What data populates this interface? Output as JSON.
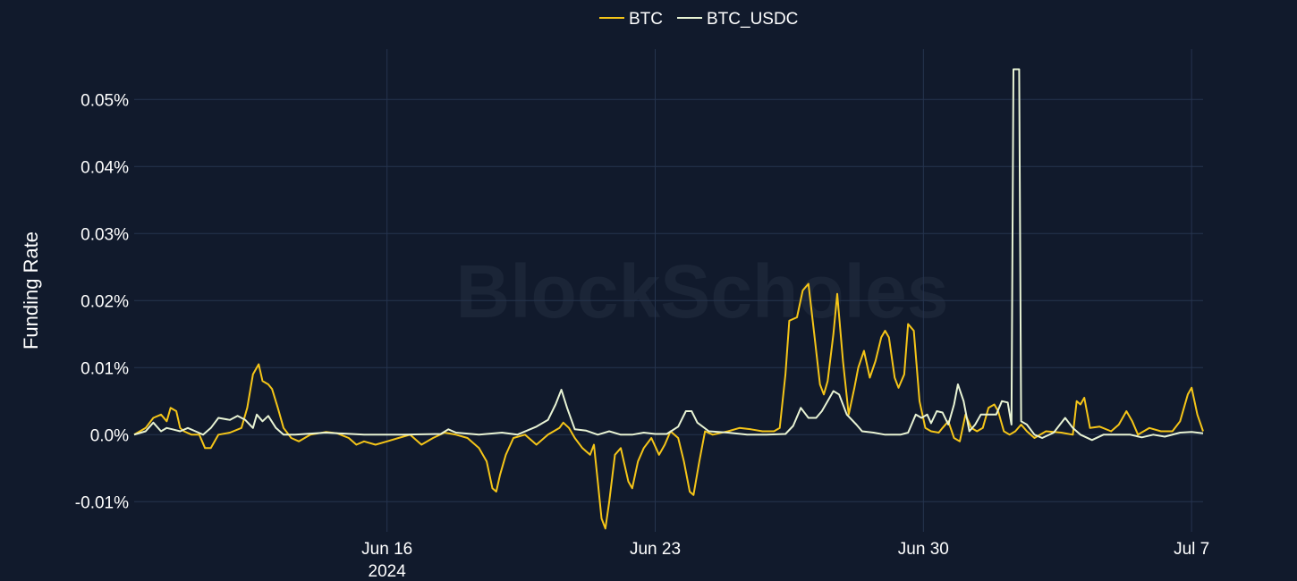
{
  "chart_data": {
    "type": "line",
    "title": "",
    "watermark": "BlockScholes",
    "ylabel": "Funding Rate",
    "xlabel": "",
    "ylim": [
      -0.0145,
      0.0575
    ],
    "xlim": [
      0,
      27.9
    ],
    "grid": true,
    "legend_position": "top-center",
    "y_ticks": [
      {
        "value": -0.01,
        "label": "-0.01%"
      },
      {
        "value": 0.0,
        "label": "0.0%"
      },
      {
        "value": 0.01,
        "label": "0.01%"
      },
      {
        "value": 0.02,
        "label": "0.02%"
      },
      {
        "value": 0.03,
        "label": "0.03%"
      },
      {
        "value": 0.04,
        "label": "0.04%"
      },
      {
        "value": 0.05,
        "label": "0.05%"
      }
    ],
    "x_ticks": [
      {
        "value": 6.6,
        "label": "Jun 16",
        "sublabel": "2024"
      },
      {
        "value": 13.6,
        "label": "Jun 23",
        "sublabel": ""
      },
      {
        "value": 20.6,
        "label": "Jun 30",
        "sublabel": ""
      },
      {
        "value": 27.6,
        "label": "Jul 7",
        "sublabel": ""
      }
    ],
    "series": [
      {
        "name": "BTC",
        "color": "#f5c518",
        "points": [
          [
            0,
            0
          ],
          [
            0.3,
            0.001
          ],
          [
            0.5,
            0.0025
          ],
          [
            0.7,
            0.003
          ],
          [
            0.85,
            0.002
          ],
          [
            0.95,
            0.004
          ],
          [
            1.1,
            0.0035
          ],
          [
            1.2,
            0.001
          ],
          [
            1.3,
            0.0005
          ],
          [
            1.5,
            0
          ],
          [
            1.7,
            0
          ],
          [
            1.85,
            -0.002
          ],
          [
            2.0,
            -0.002
          ],
          [
            2.2,
            0
          ],
          [
            2.5,
            0.0003
          ],
          [
            2.8,
            0.001
          ],
          [
            2.95,
            0.004
          ],
          [
            3.1,
            0.009
          ],
          [
            3.25,
            0.0105
          ],
          [
            3.35,
            0.008
          ],
          [
            3.5,
            0.0075
          ],
          [
            3.6,
            0.0068
          ],
          [
            3.75,
            0.004
          ],
          [
            3.9,
            0.001
          ],
          [
            4.1,
            -0.0005
          ],
          [
            4.3,
            -0.001
          ],
          [
            4.6,
            0
          ],
          [
            5.0,
            0.0004
          ],
          [
            5.3,
            0.0002
          ],
          [
            5.6,
            -0.0005
          ],
          [
            5.8,
            -0.0015
          ],
          [
            6.0,
            -0.001
          ],
          [
            6.3,
            -0.0015
          ],
          [
            6.6,
            -0.001
          ],
          [
            6.9,
            -0.0005
          ],
          [
            7.2,
            0
          ],
          [
            7.5,
            -0.0015
          ],
          [
            7.8,
            -0.0005
          ],
          [
            8.1,
            0.0003
          ],
          [
            8.4,
            0
          ],
          [
            8.7,
            -0.0005
          ],
          [
            9.0,
            -0.002
          ],
          [
            9.2,
            -0.004
          ],
          [
            9.35,
            -0.008
          ],
          [
            9.45,
            -0.0085
          ],
          [
            9.55,
            -0.006
          ],
          [
            9.7,
            -0.003
          ],
          [
            9.9,
            -0.0005
          ],
          [
            10.2,
            0
          ],
          [
            10.5,
            -0.0015
          ],
          [
            10.8,
            0
          ],
          [
            11.1,
            0.001
          ],
          [
            11.2,
            0.0018
          ],
          [
            11.35,
            0.001
          ],
          [
            11.5,
            -0.0005
          ],
          [
            11.7,
            -0.002
          ],
          [
            11.9,
            -0.003
          ],
          [
            12.0,
            -0.0015
          ],
          [
            12.1,
            -0.007
          ],
          [
            12.2,
            -0.0125
          ],
          [
            12.3,
            -0.014
          ],
          [
            12.4,
            -0.01
          ],
          [
            12.55,
            -0.003
          ],
          [
            12.7,
            -0.002
          ],
          [
            12.9,
            -0.007
          ],
          [
            13.0,
            -0.008
          ],
          [
            13.15,
            -0.004
          ],
          [
            13.3,
            -0.002
          ],
          [
            13.5,
            -0.0005
          ],
          [
            13.7,
            -0.003
          ],
          [
            13.85,
            -0.0015
          ],
          [
            14.0,
            0.0005
          ],
          [
            14.2,
            -0.0005
          ],
          [
            14.35,
            -0.004
          ],
          [
            14.5,
            -0.0085
          ],
          [
            14.6,
            -0.009
          ],
          [
            14.75,
            -0.004
          ],
          [
            14.9,
            0.0005
          ],
          [
            15.1,
            0
          ],
          [
            15.5,
            0.0005
          ],
          [
            15.8,
            0.001
          ],
          [
            16.1,
            0.0008
          ],
          [
            16.4,
            0.0005
          ],
          [
            16.7,
            0.0005
          ],
          [
            16.85,
            0.001
          ],
          [
            17.0,
            0.009
          ],
          [
            17.1,
            0.017
          ],
          [
            17.3,
            0.0175
          ],
          [
            17.45,
            0.0215
          ],
          [
            17.6,
            0.0225
          ],
          [
            17.75,
            0.015
          ],
          [
            17.9,
            0.0075
          ],
          [
            18.0,
            0.006
          ],
          [
            18.1,
            0.008
          ],
          [
            18.25,
            0.015
          ],
          [
            18.35,
            0.021
          ],
          [
            18.5,
            0.011
          ],
          [
            18.65,
            0.003
          ],
          [
            18.8,
            0.007
          ],
          [
            18.9,
            0.01
          ],
          [
            19.05,
            0.0125
          ],
          [
            19.2,
            0.0085
          ],
          [
            19.35,
            0.011
          ],
          [
            19.5,
            0.0145
          ],
          [
            19.6,
            0.0155
          ],
          [
            19.7,
            0.0145
          ],
          [
            19.85,
            0.0085
          ],
          [
            19.95,
            0.007
          ],
          [
            20.1,
            0.009
          ],
          [
            20.2,
            0.0165
          ],
          [
            20.35,
            0.0155
          ],
          [
            20.5,
            0.005
          ],
          [
            20.65,
            0.001
          ],
          [
            20.8,
            0.0005
          ],
          [
            21.0,
            0.0003
          ],
          [
            21.1,
            0.001
          ],
          [
            21.25,
            0.002
          ],
          [
            21.4,
            -0.0005
          ],
          [
            21.55,
            -0.001
          ],
          [
            21.7,
            0.003
          ],
          [
            21.85,
            0.001
          ],
          [
            22.0,
            0.0005
          ],
          [
            22.15,
            0.001
          ],
          [
            22.3,
            0.004
          ],
          [
            22.45,
            0.0045
          ],
          [
            22.55,
            0.0035
          ],
          [
            22.7,
            0.0005
          ],
          [
            22.85,
            0
          ],
          [
            23.0,
            0.0005
          ],
          [
            23.15,
            0.0015
          ],
          [
            23.3,
            0.0005
          ],
          [
            23.5,
            -0.0005
          ],
          [
            23.8,
            0.0005
          ],
          [
            24.2,
            0.0003
          ],
          [
            24.5,
            0
          ],
          [
            24.6,
            0.005
          ],
          [
            24.7,
            0.0045
          ],
          [
            24.8,
            0.0055
          ],
          [
            24.95,
            0.001
          ],
          [
            25.2,
            0.0012
          ],
          [
            25.5,
            0.0005
          ],
          [
            25.7,
            0.0015
          ],
          [
            25.9,
            0.0035
          ],
          [
            26.05,
            0.002
          ],
          [
            26.2,
            0
          ],
          [
            26.5,
            0.001
          ],
          [
            26.8,
            0.0005
          ],
          [
            27.1,
            0.0005
          ],
          [
            27.3,
            0.002
          ],
          [
            27.5,
            0.006
          ],
          [
            27.6,
            0.007
          ],
          [
            27.75,
            0.003
          ],
          [
            27.9,
            0.0005
          ]
        ]
      },
      {
        "name": "BTC_USDC",
        "color": "#e8f3d4",
        "points": [
          [
            0,
            0
          ],
          [
            0.3,
            0.0005
          ],
          [
            0.5,
            0.0018
          ],
          [
            0.7,
            0.0005
          ],
          [
            0.85,
            0.001
          ],
          [
            1.0,
            0.0008
          ],
          [
            1.2,
            0.0005
          ],
          [
            1.4,
            0.001
          ],
          [
            1.6,
            0.0005
          ],
          [
            1.8,
            0
          ],
          [
            2.0,
            0.001
          ],
          [
            2.2,
            0.0025
          ],
          [
            2.5,
            0.0022
          ],
          [
            2.7,
            0.0028
          ],
          [
            2.9,
            0.0022
          ],
          [
            3.1,
            0.001
          ],
          [
            3.2,
            0.003
          ],
          [
            3.35,
            0.002
          ],
          [
            3.5,
            0.0028
          ],
          [
            3.7,
            0.001
          ],
          [
            3.9,
            0
          ],
          [
            4.2,
            0
          ],
          [
            5.0,
            0.0003
          ],
          [
            6.0,
            0
          ],
          [
            7.0,
            0
          ],
          [
            8.0,
            0.0001
          ],
          [
            8.2,
            0.0008
          ],
          [
            8.4,
            0.0003
          ],
          [
            9.0,
            0
          ],
          [
            9.6,
            0.0003
          ],
          [
            10.0,
            0
          ],
          [
            10.5,
            0.0012
          ],
          [
            10.8,
            0.0022
          ],
          [
            11.0,
            0.0045
          ],
          [
            11.15,
            0.0067
          ],
          [
            11.3,
            0.004
          ],
          [
            11.5,
            0.0008
          ],
          [
            11.8,
            0.0006
          ],
          [
            12.1,
            0
          ],
          [
            12.4,
            0.0005
          ],
          [
            12.7,
            0
          ],
          [
            13.0,
            0
          ],
          [
            13.3,
            0.0003
          ],
          [
            13.6,
            0.0001
          ],
          [
            13.9,
            0.0001
          ],
          [
            14.2,
            0.0012
          ],
          [
            14.4,
            0.0035
          ],
          [
            14.55,
            0.0035
          ],
          [
            14.7,
            0.0018
          ],
          [
            15.0,
            0.0005
          ],
          [
            15.5,
            0.0003
          ],
          [
            16.0,
            0
          ],
          [
            16.5,
            0
          ],
          [
            17.0,
            0.0001
          ],
          [
            17.2,
            0.0013
          ],
          [
            17.4,
            0.004
          ],
          [
            17.6,
            0.0025
          ],
          [
            17.8,
            0.0025
          ],
          [
            17.95,
            0.0035
          ],
          [
            18.1,
            0.005
          ],
          [
            18.25,
            0.0065
          ],
          [
            18.4,
            0.006
          ],
          [
            18.6,
            0.003
          ],
          [
            18.85,
            0.0015
          ],
          [
            19.0,
            0.0005
          ],
          [
            19.3,
            0.0003
          ],
          [
            19.6,
            0
          ],
          [
            20.0,
            0
          ],
          [
            20.2,
            0.0003
          ],
          [
            20.4,
            0.003
          ],
          [
            20.55,
            0.0025
          ],
          [
            20.7,
            0.003
          ],
          [
            20.8,
            0.0017
          ],
          [
            20.95,
            0.0035
          ],
          [
            21.1,
            0.0033
          ],
          [
            21.25,
            0.0015
          ],
          [
            21.4,
            0.0045
          ],
          [
            21.5,
            0.0075
          ],
          [
            21.65,
            0.005
          ],
          [
            21.8,
            0.0005
          ],
          [
            21.95,
            0.0015
          ],
          [
            22.1,
            0.003
          ],
          [
            22.3,
            0.003
          ],
          [
            22.5,
            0.003
          ],
          [
            22.65,
            0.005
          ],
          [
            22.8,
            0.0048
          ],
          [
            22.9,
            0.0015
          ],
          [
            22.95,
            0.0545
          ],
          [
            23.0,
            0.0545
          ],
          [
            23.1,
            0.0545
          ],
          [
            23.15,
            0.002
          ],
          [
            23.3,
            0.0015
          ],
          [
            23.5,
            0
          ],
          [
            23.7,
            -0.0005
          ],
          [
            24.0,
            0.0003
          ],
          [
            24.3,
            0.0025
          ],
          [
            24.5,
            0.001
          ],
          [
            24.7,
            0
          ],
          [
            25.0,
            -0.0008
          ],
          [
            25.3,
            0
          ],
          [
            25.6,
            0
          ],
          [
            26.0,
            0
          ],
          [
            26.3,
            -0.0004
          ],
          [
            26.6,
            0
          ],
          [
            26.9,
            -0.0003
          ],
          [
            27.3,
            0.0003
          ],
          [
            27.6,
            0.0004
          ],
          [
            27.9,
            0.0002
          ]
        ]
      }
    ]
  }
}
